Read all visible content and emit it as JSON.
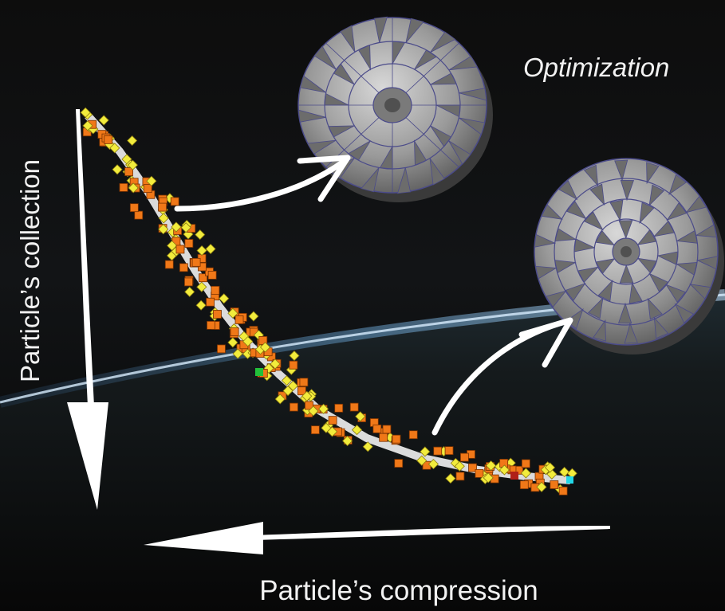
{
  "labels": {
    "optimization": "Optimization",
    "collection": "Particle’s collection",
    "compression": "Particle’s compression"
  },
  "colors": {
    "background_top": "#0a0a0a",
    "atmosphere": "#4f86b8",
    "arrow": "#ffffff",
    "marker_orange": "#f07818",
    "marker_yellow": "#f2ec3c",
    "structure_face": "#8a8a8a"
  },
  "icons": {
    "structure_a": "radial-vane-disc-icon",
    "structure_b": "concentric-vane-disc-icon"
  }
}
